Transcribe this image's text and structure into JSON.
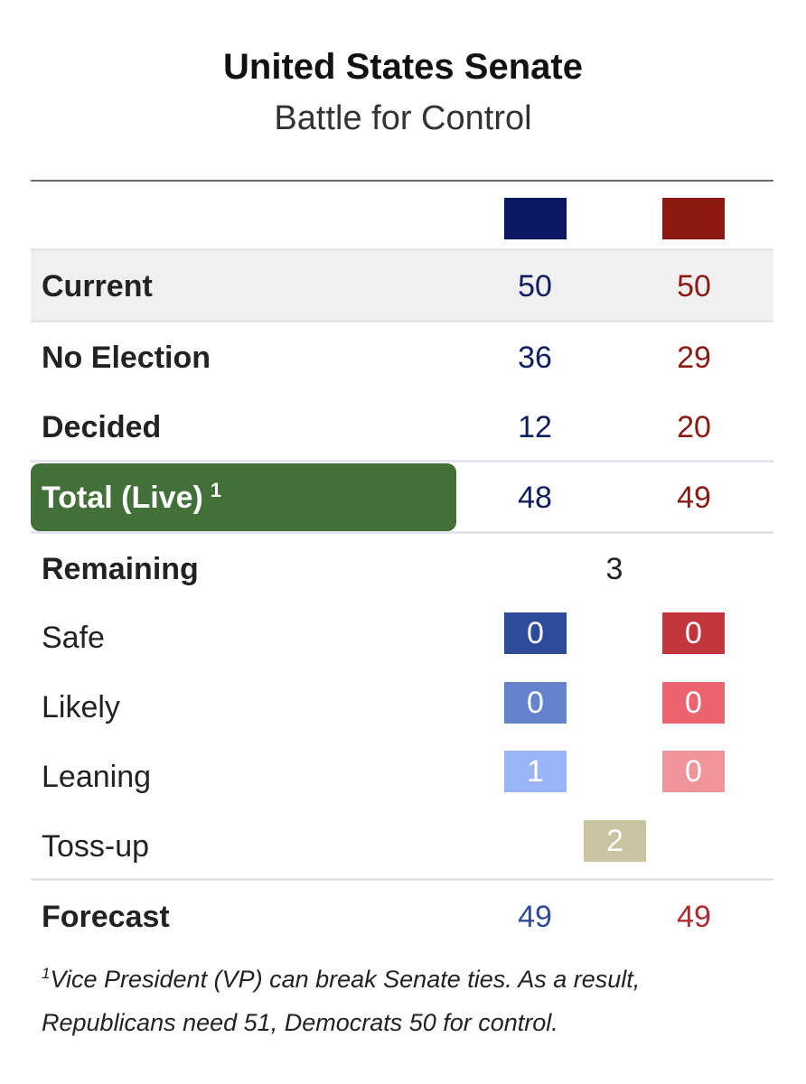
{
  "header": {
    "title": "United States Senate",
    "subtitle": "Battle for Control"
  },
  "colors": {
    "dem_header": "#0b1763",
    "rep_header": "#8b1a12",
    "dem_safe": "#2d4b99",
    "rep_safe": "#c1353b",
    "dem_likely": "#6583cc",
    "rep_likely": "#eb6470",
    "dem_leaning": "#9ab5f5",
    "rep_leaning": "#f0949c",
    "tossup": "#c8c4a1",
    "total_highlight": "#427038"
  },
  "rows": {
    "current": {
      "label": "Current",
      "dem": "50",
      "rep": "50"
    },
    "no_election": {
      "label": "No Election",
      "dem": "36",
      "rep": "29"
    },
    "decided": {
      "label": "Decided",
      "dem": "12",
      "rep": "20"
    },
    "total": {
      "label": "Total (Live)",
      "footnote_ref": "1",
      "dem": "48",
      "rep": "49"
    },
    "remaining": {
      "label": "Remaining",
      "value": "3"
    },
    "safe": {
      "label": "Safe",
      "dem": "0",
      "rep": "0"
    },
    "likely": {
      "label": "Likely",
      "dem": "0",
      "rep": "0"
    },
    "leaning": {
      "label": "Leaning",
      "dem": "1",
      "rep": "0"
    },
    "tossup": {
      "label": "Toss-up",
      "value": "2"
    },
    "forecast": {
      "label": "Forecast",
      "dem": "49",
      "rep": "49"
    }
  },
  "footnote": {
    "marker": "1",
    "line1": "Vice President (VP) can break Senate ties. As a result,",
    "line2": "Republicans need 51, Democrats 50 for control."
  }
}
